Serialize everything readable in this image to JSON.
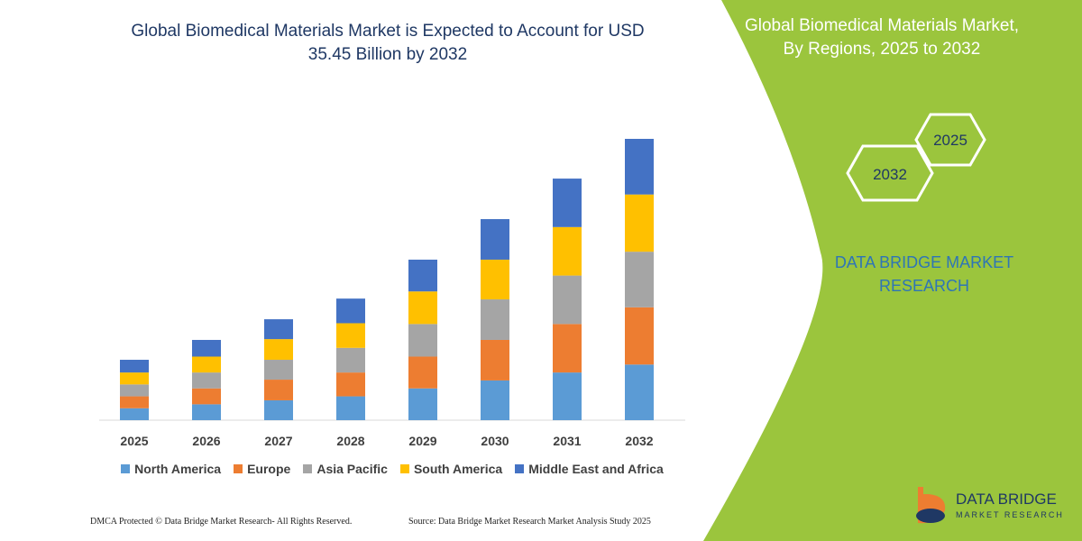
{
  "chart_data": {
    "type": "bar",
    "stacked": true,
    "title": "Global Biomedical Materials Market is Expected to Account for USD 35.45 Billion by 2032",
    "categories": [
      "2025",
      "2026",
      "2027",
      "2028",
      "2029",
      "2030",
      "2031",
      "2032"
    ],
    "series": [
      {
        "name": "North America",
        "color": "#5b9bd5",
        "values": [
          1.5,
          2.0,
          2.5,
          3.0,
          4.0,
          5.0,
          6.0,
          7.0
        ]
      },
      {
        "name": "Europe",
        "color": "#ed7d31",
        "values": [
          1.5,
          2.0,
          2.6,
          3.0,
          4.0,
          5.1,
          6.1,
          7.2
        ]
      },
      {
        "name": "Asia Pacific",
        "color": "#a5a5a5",
        "values": [
          1.5,
          2.0,
          2.5,
          3.1,
          4.1,
          5.1,
          6.1,
          7.0
        ]
      },
      {
        "name": "South America",
        "color": "#ffc000",
        "values": [
          1.5,
          2.0,
          2.6,
          3.1,
          4.1,
          5.0,
          6.1,
          7.2
        ]
      },
      {
        "name": "Middle East and Africa",
        "color": "#4472c4",
        "values": [
          1.6,
          2.1,
          2.5,
          3.1,
          4.0,
          5.1,
          6.1,
          7.0
        ]
      }
    ],
    "legend": "bottom"
  },
  "panel": {
    "title": "Global Biomedical Materials Market, By Regions, 2025 to 2032",
    "hexagons": [
      "2032",
      "2025"
    ],
    "brand": "DATA BRIDGE MARKET RESEARCH"
  },
  "footer": {
    "left": "DMCA Protected © Data Bridge Market Research-  All Rights Reserved.",
    "right": "Source: Data Bridge Market Research  Market Analysis Study 2025"
  },
  "logo": {
    "name": "DATA BRIDGE",
    "tagline": "MARKET RESEARCH"
  }
}
